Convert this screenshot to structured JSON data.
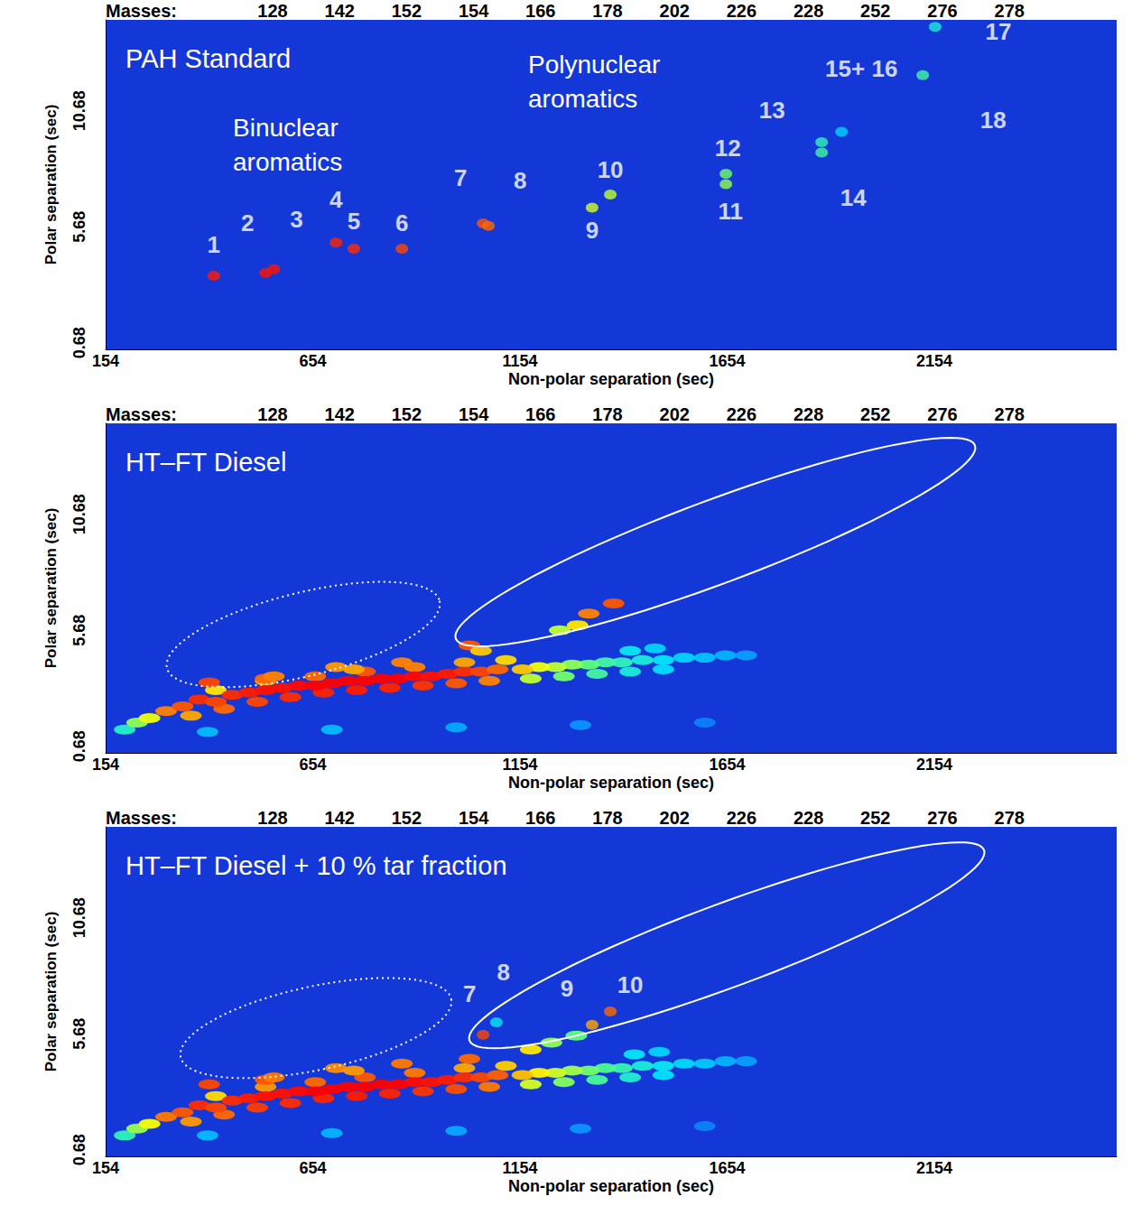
{
  "chart_data": [
    {
      "type": "scatter",
      "title": "PAH Standard",
      "annotations": [
        "Binuclear aromatics",
        "Polynuclear aromatics"
      ],
      "masses_label": "Masses:",
      "masses": [
        128,
        142,
        152,
        154,
        166,
        178,
        202,
        226,
        228,
        252,
        276,
        278
      ],
      "xlabel": "Non-polar separation (sec)",
      "ylabel": "Polar separation (sec)",
      "xlim": [
        154,
        2594
      ],
      "ylim": [
        0.4,
        14.6
      ],
      "xticks": [
        154,
        654,
        1154,
        1654,
        2154
      ],
      "yticks": [
        0.68,
        5.68,
        10.68
      ],
      "intensity_range": [
        0,
        100
      ],
      "peaks": [
        {
          "label": "1",
          "x": 415,
          "y": 3.57,
          "intensity": 97
        },
        {
          "label": "2",
          "x": 540,
          "y": 3.7,
          "intensity": 98
        },
        {
          "label": "3",
          "x": 560,
          "y": 3.85,
          "intensity": 98
        },
        {
          "label": "4",
          "x": 710,
          "y": 5.0,
          "intensity": 96
        },
        {
          "label": "5",
          "x": 753,
          "y": 4.74,
          "intensity": 95
        },
        {
          "label": "6",
          "x": 869,
          "y": 4.74,
          "intensity": 92
        },
        {
          "label": "7",
          "x": 1065,
          "y": 5.83,
          "intensity": 90
        },
        {
          "label": "8",
          "x": 1078,
          "y": 5.72,
          "intensity": 88
        },
        {
          "label": "9",
          "x": 1328,
          "y": 6.51,
          "intensity": 62
        },
        {
          "label": "10",
          "x": 1372,
          "y": 7.07,
          "intensity": 60
        },
        {
          "label": "11",
          "x": 1651,
          "y": 7.52,
          "intensity": 55
        },
        {
          "label": "12",
          "x": 1651,
          "y": 7.97,
          "intensity": 52
        },
        {
          "label": "13",
          "x": 1882,
          "y": 9.33,
          "intensity": 42
        },
        {
          "label": "14",
          "x": 1882,
          "y": 8.88,
          "intensity": 45
        },
        {
          "label": "15+ 16",
          "x": 1930,
          "y": 9.78,
          "intensity": 30
        },
        {
          "label": "17",
          "x": 2156,
          "y": 14.3,
          "intensity": 38
        },
        {
          "label": "18",
          "x": 2126,
          "y": 12.22,
          "intensity": 45
        }
      ],
      "cloud": [],
      "regions": []
    },
    {
      "type": "scatter",
      "title": "HT–FT Diesel",
      "annotations": [],
      "masses_label": "Masses:",
      "masses": [
        128,
        142,
        152,
        154,
        166,
        178,
        202,
        226,
        228,
        252,
        276,
        278
      ],
      "xlabel": "Non-polar separation (sec)",
      "ylabel": "Polar separation (sec)",
      "xlim": [
        154,
        2594
      ],
      "ylim": [
        0.4,
        14.6
      ],
      "xticks": [
        154,
        654,
        1154,
        1654,
        2154
      ],
      "yticks": [
        0.68,
        5.68,
        10.68
      ],
      "intensity_range": [
        0,
        100
      ],
      "peaks": [],
      "cloud": [
        [
          400,
          1.3,
          25
        ],
        [
          700,
          1.4,
          25
        ],
        [
          1000,
          1.5,
          22
        ],
        [
          1300,
          1.6,
          18
        ],
        [
          1600,
          1.7,
          14
        ],
        [
          1700,
          4.6,
          20
        ],
        [
          1650,
          4.6,
          24
        ],
        [
          1600,
          4.5,
          27
        ],
        [
          1550,
          4.5,
          30
        ],
        [
          1500,
          4.4,
          34
        ],
        [
          1450,
          4.4,
          38
        ],
        [
          1400,
          4.3,
          42
        ],
        [
          1360,
          4.3,
          45
        ],
        [
          1320,
          4.2,
          50
        ],
        [
          1280,
          4.2,
          55
        ],
        [
          1240,
          4.1,
          60
        ],
        [
          1200,
          4.1,
          65
        ],
        [
          1160,
          4.0,
          75
        ],
        [
          1180,
          3.6,
          60
        ],
        [
          1260,
          3.7,
          52
        ],
        [
          1340,
          3.8,
          45
        ],
        [
          1420,
          3.9,
          38
        ],
        [
          1500,
          4.0,
          32
        ],
        [
          1420,
          4.8,
          35
        ],
        [
          1480,
          4.9,
          30
        ],
        [
          200,
          1.4,
          40
        ],
        [
          230,
          1.7,
          55
        ],
        [
          260,
          1.9,
          65
        ],
        [
          420,
          3.1,
          70
        ],
        [
          540,
          3.5,
          80
        ],
        [
          660,
          3.7,
          88
        ],
        [
          780,
          3.9,
          90
        ],
        [
          900,
          4.1,
          85
        ],
        [
          1020,
          4.3,
          80
        ],
        [
          1120,
          4.4,
          72
        ],
        [
          360,
          2.0,
          80
        ],
        [
          440,
          2.3,
          88
        ],
        [
          520,
          2.6,
          92
        ],
        [
          600,
          2.8,
          95
        ],
        [
          680,
          3.0,
          96
        ],
        [
          760,
          3.1,
          97
        ],
        [
          840,
          3.2,
          96
        ],
        [
          920,
          3.3,
          94
        ],
        [
          1000,
          3.4,
          90
        ],
        [
          1080,
          3.5,
          85
        ],
        [
          300,
          2.2,
          85
        ],
        [
          340,
          2.4,
          90
        ],
        [
          380,
          2.7,
          95
        ],
        [
          420,
          2.6,
          92
        ],
        [
          460,
          2.9,
          95
        ],
        [
          500,
          3.0,
          97
        ],
        [
          540,
          3.1,
          98
        ],
        [
          580,
          3.2,
          98
        ],
        [
          620,
          3.3,
          99
        ],
        [
          660,
          3.3,
          100
        ],
        [
          700,
          3.4,
          100
        ],
        [
          740,
          3.5,
          100
        ],
        [
          780,
          3.5,
          100
        ],
        [
          820,
          3.6,
          100
        ],
        [
          860,
          3.6,
          100
        ],
        [
          900,
          3.7,
          99
        ],
        [
          940,
          3.7,
          98
        ],
        [
          980,
          3.8,
          97
        ],
        [
          1020,
          3.9,
          95
        ],
        [
          1060,
          3.9,
          92
        ],
        [
          1100,
          4.0,
          88
        ],
        [
          404,
          3.43,
          92
        ],
        [
          540,
          3.6,
          88
        ],
        [
          560,
          3.7,
          85
        ],
        [
          710,
          4.1,
          82
        ],
        [
          753,
          4.0,
          80
        ],
        [
          869,
          4.3,
          85
        ],
        [
          1032,
          5.03,
          90
        ],
        [
          1060,
          4.8,
          75
        ],
        [
          1250,
          5.68,
          60
        ],
        [
          1293,
          5.9,
          70
        ],
        [
          1320,
          6.4,
          85
        ],
        [
          1380,
          6.84,
          90
        ]
      ],
      "regions": [
        {
          "from": [
            302,
            4.05
          ],
          "to": [
            960,
            6.95
          ],
          "half_width": 1.8,
          "line_style": "dotted"
        },
        {
          "from": [
            999,
            5.32
          ],
          "to": [
            2252,
            13.65
          ],
          "half_width": 1.8,
          "line_style": "solid"
        }
      ]
    },
    {
      "type": "scatter",
      "title": "HT–FT Diesel + 10 % tar fraction",
      "annotations": [],
      "masses_label": "Masses:",
      "masses": [
        128,
        142,
        152,
        154,
        166,
        178,
        202,
        226,
        228,
        252,
        276,
        278
      ],
      "xlabel": "Non-polar separation (sec)",
      "ylabel": "Polar separation (sec)",
      "xlim": [
        154,
        2594
      ],
      "ylim": [
        0.4,
        14.6
      ],
      "xticks": [
        154,
        654,
        1154,
        1654,
        2154
      ],
      "yticks": [
        0.68,
        5.68,
        10.68
      ],
      "intensity_range": [
        0,
        100
      ],
      "peaks": [
        {
          "label": "7",
          "x": 1065,
          "y": 5.64,
          "intensity": 92
        },
        {
          "label": "8",
          "x": 1097,
          "y": 6.18,
          "intensity": 35
        },
        {
          "label": "9",
          "x": 1328,
          "y": 6.07,
          "intensity": 80
        },
        {
          "label": "10",
          "x": 1372,
          "y": 6.64,
          "intensity": 88
        }
      ],
      "cloud": [
        [
          400,
          1.3,
          25
        ],
        [
          700,
          1.4,
          24
        ],
        [
          1000,
          1.5,
          22
        ],
        [
          1300,
          1.6,
          18
        ],
        [
          1600,
          1.7,
          14
        ],
        [
          1700,
          4.5,
          20
        ],
        [
          1650,
          4.5,
          24
        ],
        [
          1600,
          4.4,
          28
        ],
        [
          1550,
          4.4,
          31
        ],
        [
          1500,
          4.3,
          35
        ],
        [
          1450,
          4.3,
          38
        ],
        [
          1400,
          4.2,
          43
        ],
        [
          1360,
          4.2,
          47
        ],
        [
          1320,
          4.1,
          52
        ],
        [
          1280,
          4.1,
          57
        ],
        [
          1240,
          4.0,
          62
        ],
        [
          1200,
          4.0,
          68
        ],
        [
          1160,
          3.9,
          76
        ],
        [
          1180,
          3.5,
          62
        ],
        [
          1260,
          3.6,
          54
        ],
        [
          1340,
          3.7,
          46
        ],
        [
          1420,
          3.8,
          39
        ],
        [
          1500,
          3.9,
          33
        ],
        [
          1430,
          4.8,
          34
        ],
        [
          1490,
          4.9,
          30
        ],
        [
          200,
          1.3,
          42
        ],
        [
          230,
          1.6,
          56
        ],
        [
          260,
          1.8,
          66
        ],
        [
          420,
          3.0,
          72
        ],
        [
          540,
          3.4,
          82
        ],
        [
          660,
          3.6,
          88
        ],
        [
          780,
          3.8,
          90
        ],
        [
          900,
          4.0,
          86
        ],
        [
          1020,
          4.2,
          80
        ],
        [
          1120,
          4.3,
          74
        ],
        [
          360,
          1.9,
          82
        ],
        [
          440,
          2.2,
          88
        ],
        [
          520,
          2.5,
          93
        ],
        [
          600,
          2.7,
          95
        ],
        [
          680,
          2.9,
          96
        ],
        [
          760,
          3.0,
          97
        ],
        [
          840,
          3.1,
          96
        ],
        [
          920,
          3.2,
          94
        ],
        [
          1000,
          3.3,
          91
        ],
        [
          1080,
          3.4,
          86
        ],
        [
          300,
          2.1,
          86
        ],
        [
          340,
          2.3,
          90
        ],
        [
          380,
          2.6,
          95
        ],
        [
          420,
          2.5,
          92
        ],
        [
          460,
          2.8,
          95
        ],
        [
          500,
          2.9,
          97
        ],
        [
          540,
          3.0,
          98
        ],
        [
          580,
          3.1,
          98
        ],
        [
          620,
          3.2,
          99
        ],
        [
          660,
          3.2,
          100
        ],
        [
          700,
          3.3,
          100
        ],
        [
          740,
          3.4,
          100
        ],
        [
          780,
          3.4,
          100
        ],
        [
          820,
          3.5,
          100
        ],
        [
          860,
          3.5,
          100
        ],
        [
          900,
          3.6,
          99
        ],
        [
          940,
          3.6,
          98
        ],
        [
          980,
          3.7,
          97
        ],
        [
          1020,
          3.8,
          95
        ],
        [
          1060,
          3.8,
          92
        ],
        [
          1100,
          3.9,
          89
        ],
        [
          404,
          3.5,
          92
        ],
        [
          540,
          3.7,
          90
        ],
        [
          560,
          3.8,
          86
        ],
        [
          710,
          4.2,
          84
        ],
        [
          753,
          4.1,
          82
        ],
        [
          869,
          4.4,
          86
        ],
        [
          1032,
          4.6,
          88
        ],
        [
          1180,
          5.0,
          70
        ],
        [
          1230,
          5.3,
          55
        ],
        [
          1290,
          5.6,
          50
        ]
      ],
      "regions": [
        {
          "from": [
            335,
            4.68
          ],
          "to": [
            988,
            7.18
          ],
          "half_width": 1.8,
          "line_style": "dotted"
        },
        {
          "from": [
            1032,
            5.39
          ],
          "to": [
            2274,
            13.6
          ],
          "half_width": 1.8,
          "line_style": "solid"
        }
      ]
    }
  ]
}
